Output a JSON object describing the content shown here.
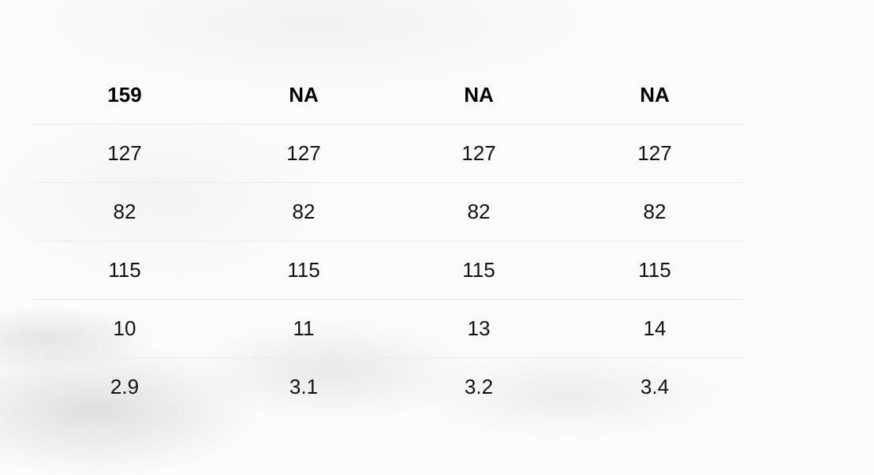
{
  "table": {
    "header": [
      "159",
      "NA",
      "NA",
      "NA"
    ],
    "rows": [
      [
        "127",
        "127",
        "127",
        "127"
      ],
      [
        "82",
        "82",
        "82",
        "82"
      ],
      [
        "115",
        "115",
        "115",
        "115"
      ],
      [
        "10",
        "11",
        "13",
        "14"
      ],
      [
        "2.9",
        "3.1",
        "3.2",
        "3.4"
      ]
    ]
  }
}
